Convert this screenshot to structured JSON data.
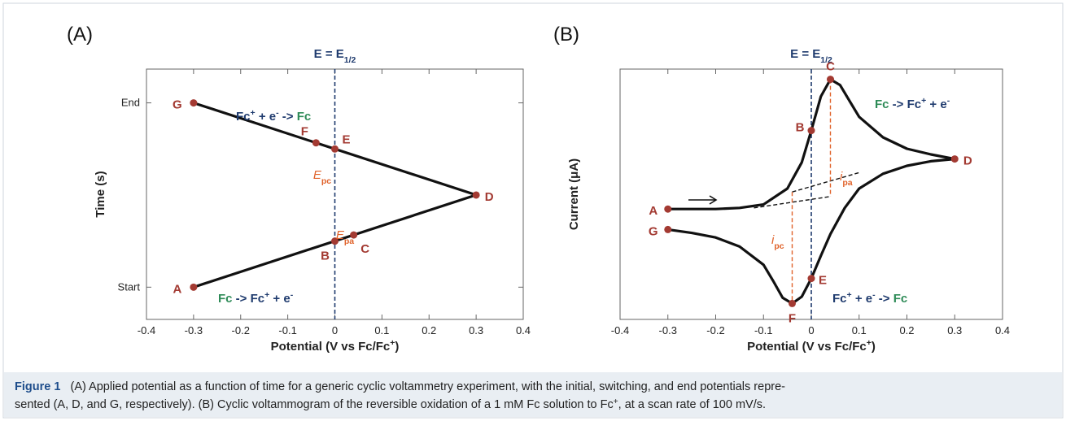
{
  "chart_data": [
    {
      "type": "line",
      "panel_label": "(A)",
      "title": {
        "parts": [
          {
            "text": "E = E"
          },
          {
            "text": "1/2",
            "style": "sub"
          }
        ]
      },
      "xlabel": {
        "parts": [
          {
            "text": "Potential (V vs Fc/Fc"
          },
          {
            "text": "+",
            "style": "sup"
          },
          {
            "text": ")"
          }
        ]
      },
      "ylabel": "Time (s)",
      "xlim": [
        -0.4,
        0.4
      ],
      "xticks": [
        -0.4,
        -0.3,
        -0.2,
        -0.1,
        0,
        0.1,
        0.2,
        0.3,
        0.4
      ],
      "ylim": [
        -10.5,
        71
      ],
      "yticks": [
        {
          "value": 0,
          "label": "Start"
        },
        {
          "value": 60,
          "label": "End"
        }
      ],
      "vlines": [
        {
          "x": 0,
          "color": "#1f3b6e"
        }
      ],
      "series": [
        {
          "color": "#111111",
          "x": [
            -0.3,
            0.3,
            -0.3
          ],
          "values": [
            0,
            30,
            60
          ]
        }
      ],
      "points": [
        {
          "label": "A",
          "x": -0.3,
          "y": 0
        },
        {
          "label": "B",
          "x": 0,
          "y": 15
        },
        {
          "label": "C",
          "x": 0.04,
          "y": 17
        },
        {
          "label": "D",
          "x": 0.3,
          "y": 30
        },
        {
          "label": "E",
          "x": 0,
          "y": 45
        },
        {
          "label": "F",
          "x": -0.04,
          "y": 47
        },
        {
          "label": "G",
          "x": -0.3,
          "y": 60
        }
      ],
      "point_color": "#a33a32",
      "annotations": [
        {
          "parts": [
            {
              "text": "Fc",
              "color": "#1f3b6e"
            },
            {
              "text": "+",
              "style": "sup",
              "color": "#1f3b6e"
            },
            {
              "text": " + e",
              "color": "#1f3b6e"
            },
            {
              "text": "-",
              "style": "sup",
              "color": "#1f3b6e"
            },
            {
              "text": " -> ",
              "color": "#1f3b6e"
            },
            {
              "text": "Fc",
              "color": "#2e8b57"
            }
          ]
        },
        {
          "parts": [
            {
              "text": "Fc",
              "color": "#2e8b57"
            },
            {
              "text": " -> Fc",
              "color": "#1f3b6e"
            },
            {
              "text": "+",
              "style": "sup",
              "color": "#1f3b6e"
            },
            {
              "text": " + e",
              "color": "#1f3b6e"
            },
            {
              "text": "-",
              "style": "sup",
              "color": "#1f3b6e"
            }
          ]
        },
        {
          "parts": [
            {
              "text": "E",
              "style": "italic",
              "color": "#e0622a"
            },
            {
              "text": "pc",
              "style": "sub",
              "color": "#e0622a"
            }
          ]
        },
        {
          "parts": [
            {
              "text": "E",
              "style": "italic",
              "color": "#e0622a"
            },
            {
              "text": "pa",
              "style": "sub",
              "color": "#e0622a"
            }
          ]
        }
      ]
    },
    {
      "type": "line",
      "panel_label": "(B)",
      "title": {
        "parts": [
          {
            "text": "E = E"
          },
          {
            "text": "1/2",
            "style": "sub"
          }
        ]
      },
      "xlabel": {
        "parts": [
          {
            "text": "Potential (V vs Fc/Fc"
          },
          {
            "text": "+",
            "style": "sup"
          },
          {
            "text": ")"
          }
        ]
      },
      "ylabel": "Current (μA)",
      "xlim": [
        -0.4,
        0.4
      ],
      "xticks": [
        -0.4,
        -0.3,
        -0.2,
        -0.1,
        0,
        0.1,
        0.2,
        0.3,
        0.4
      ],
      "ylim": [
        -11,
        11
      ],
      "vlines": [
        {
          "x": 0,
          "color": "#1f3b6e"
        }
      ],
      "series": [
        {
          "color": "#111111",
          "x": [
            -0.3,
            -0.2,
            -0.15,
            -0.1,
            -0.05,
            -0.02,
            0,
            0.02,
            0.04,
            0.06,
            0.08,
            0.1,
            0.15,
            0.2,
            0.25,
            0.3,
            0.25,
            0.2,
            0.15,
            0.1,
            0.07,
            0.04,
            0.02,
            0,
            -0.02,
            -0.04,
            -0.06,
            -0.08,
            -0.1,
            -0.15,
            -0.2,
            -0.25,
            -0.3
          ],
          "values": [
            -1.3,
            -1.3,
            -1.2,
            -0.9,
            0.5,
            2.8,
            5.6,
            8.6,
            10.1,
            9.6,
            8.2,
            6.8,
            5,
            4,
            3.5,
            3.1,
            2.9,
            2.5,
            1.8,
            0.5,
            -1.2,
            -3.5,
            -5.4,
            -7.4,
            -9,
            -9.6,
            -9.1,
            -7.6,
            -6.2,
            -4.6,
            -3.8,
            -3.4,
            -3.1
          ]
        },
        {
          "color": "#111111",
          "dashed": true,
          "x": [
            -0.12,
            0.04
          ],
          "values": [
            -1.2,
            -0.2
          ]
        },
        {
          "color": "#111111",
          "dashed": true,
          "x": [
            -0.04,
            0.1
          ],
          "values": [
            0.2,
            1.9
          ]
        },
        {
          "color": "#e0622a",
          "dashed": true,
          "x": [
            0.04,
            0.04
          ],
          "values": [
            10.1,
            -0.2
          ]
        },
        {
          "color": "#e0622a",
          "dashed": true,
          "x": [
            -0.04,
            -0.04
          ],
          "values": [
            0.2,
            -9.6
          ]
        }
      ],
      "points": [
        {
          "label": "A",
          "x": -0.3,
          "y": -1.3
        },
        {
          "label": "B",
          "x": 0,
          "y": 5.6
        },
        {
          "label": "C",
          "x": 0.04,
          "y": 10.1
        },
        {
          "label": "D",
          "x": 0.3,
          "y": 3.1
        },
        {
          "label": "E",
          "x": 0,
          "y": -7.4
        },
        {
          "label": "F",
          "x": -0.04,
          "y": -9.6
        },
        {
          "label": "G",
          "x": -0.3,
          "y": -3.1
        }
      ],
      "point_color": "#a33a32",
      "annotations": [
        {
          "parts": [
            {
              "text": "Fc",
              "color": "#2e8b57"
            },
            {
              "text": " -> Fc",
              "color": "#1f3b6e"
            },
            {
              "text": "+",
              "style": "sup",
              "color": "#1f3b6e"
            },
            {
              "text": " + e",
              "color": "#1f3b6e"
            },
            {
              "text": "-",
              "style": "sup",
              "color": "#1f3b6e"
            }
          ]
        },
        {
          "parts": [
            {
              "text": "Fc",
              "color": "#1f3b6e"
            },
            {
              "text": "+",
              "style": "sup",
              "color": "#1f3b6e"
            },
            {
              "text": " + e",
              "color": "#1f3b6e"
            },
            {
              "text": "-",
              "style": "sup",
              "color": "#1f3b6e"
            },
            {
              "text": " -> ",
              "color": "#1f3b6e"
            },
            {
              "text": "Fc",
              "color": "#2e8b57"
            }
          ]
        },
        {
          "parts": [
            {
              "text": "i",
              "style": "italic",
              "color": "#e0622a"
            },
            {
              "text": "pa",
              "style": "sub",
              "color": "#e0622a"
            }
          ]
        },
        {
          "parts": [
            {
              "text": "i",
              "style": "italic",
              "color": "#e0622a"
            },
            {
              "text": "pc",
              "style": "sub",
              "color": "#e0622a"
            }
          ]
        }
      ]
    }
  ],
  "caption": {
    "label": "Figure 1",
    "lines": [
      {
        "parts": [
          {
            "text": "(A) Applied potential as a function of time for a generic cyclic voltammetry experiment, with the initial, switching, and end potentials repre-"
          }
        ]
      },
      {
        "parts": [
          {
            "text": "sented (A, D, and G, respectively). (B) Cyclic voltammogram of the reversible oxidation of a 1 mM Fc solution to Fc"
          },
          {
            "text": "+",
            "style": "sup"
          },
          {
            "text": ", at a scan rate of 100 mV/s."
          }
        ]
      }
    ]
  }
}
